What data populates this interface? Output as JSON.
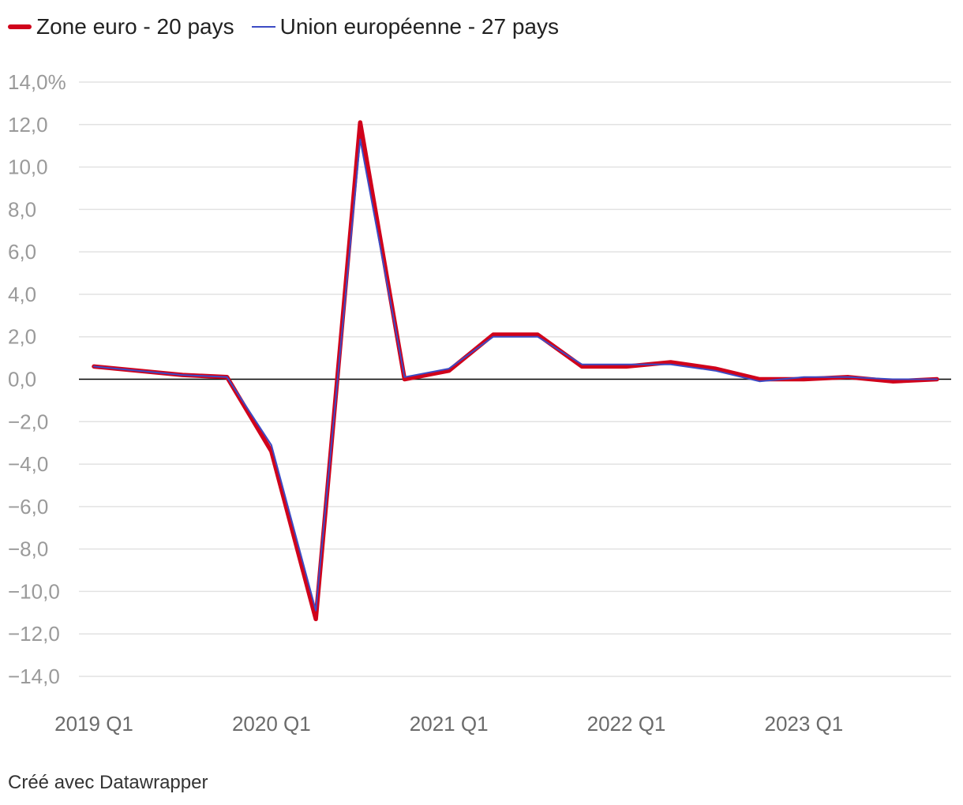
{
  "chart_data": {
    "type": "line",
    "title": "",
    "xlabel": "",
    "ylabel": "",
    "ylim": [
      -14,
      14
    ],
    "y_ticks": [
      14,
      12,
      10,
      8,
      6,
      4,
      2,
      0,
      -2,
      -4,
      -6,
      -8,
      -10,
      -12,
      -14
    ],
    "y_tick_labels": [
      "14,0%",
      "12,0",
      "10,0",
      "8,0",
      "6,0",
      "4,0",
      "2,0",
      "0,0",
      "−2,0",
      "−4,0",
      "−6,0",
      "−8,0",
      "−10,0",
      "−12,0",
      "−14,0"
    ],
    "x": [
      "2019 Q1",
      "2019 Q2",
      "2019 Q3",
      "2019 Q4",
      "2020 Q1",
      "2020 Q2",
      "2020 Q3",
      "2020 Q4",
      "2021 Q1",
      "2021 Q2",
      "2021 Q3",
      "2021 Q4",
      "2022 Q1",
      "2022 Q2",
      "2022 Q3",
      "2022 Q4",
      "2023 Q1",
      "2023 Q2",
      "2023 Q3",
      "2023 Q4"
    ],
    "x_tick_labels": [
      "2019 Q1",
      "2020 Q1",
      "2021 Q1",
      "2022 Q1",
      "2023 Q1"
    ],
    "series": [
      {
        "name": "Zone euro - 20 pays",
        "color": "#d0021b",
        "values": [
          0.6,
          0.4,
          0.2,
          0.1,
          -3.4,
          -11.3,
          12.1,
          0.0,
          0.4,
          2.1,
          2.1,
          0.6,
          0.6,
          0.8,
          0.5,
          0.0,
          0.0,
          0.1,
          -0.1,
          0.0
        ]
      },
      {
        "name": "Union européenne - 27 pays",
        "color": "#3c4bc4",
        "values": [
          0.6,
          0.4,
          0.2,
          0.1,
          -3.1,
          -10.9,
          11.3,
          0.1,
          0.5,
          2.0,
          2.0,
          0.7,
          0.7,
          0.7,
          0.4,
          -0.1,
          0.1,
          0.1,
          0.0,
          0.0
        ]
      }
    ]
  },
  "legend": {
    "items": [
      {
        "label": "Zone euro - 20 pays"
      },
      {
        "label": "Union européenne - 27 pays"
      }
    ]
  },
  "footer": {
    "credit": "Créé avec Datawrapper"
  }
}
